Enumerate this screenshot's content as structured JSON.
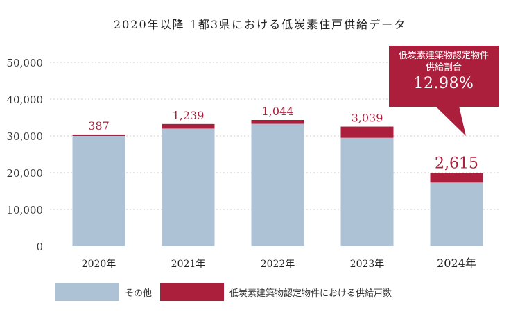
{
  "colors": {
    "other": "#aec2d6",
    "low_carbon": "#ab1f3c",
    "grid": "#cfcfcf",
    "label": "#ab1f3c"
  },
  "chart_data": {
    "type": "bar",
    "stacked": true,
    "title": "2020年以降 1都3県における低炭素住戸供給データ",
    "categories": [
      "2020年",
      "2021年",
      "2022年",
      "2023年",
      "2024年"
    ],
    "series": [
      {
        "name": "その他",
        "values": [
          30000,
          32000,
          33300,
          29500,
          17300
        ]
      },
      {
        "name": "低炭素建築物認定物件における供給戸数",
        "values": [
          387,
          1239,
          1044,
          3039,
          2615
        ]
      }
    ],
    "ylim": [
      0,
      50000
    ],
    "yticks": [
      "0",
      "10,000",
      "20,000",
      "30,000",
      "40,000",
      "50,000"
    ],
    "data_labels": [
      "387",
      "1,239",
      "1,044",
      "3,039",
      "2,615"
    ],
    "grid": true,
    "legend_position": "bottom-left"
  },
  "callout": {
    "line1": "低炭素建築物認定物件",
    "line2": "供給割合",
    "value": "12.98%"
  },
  "legend": {
    "other_label": "その他",
    "low_carbon_label": "低炭素建築物認定物件における供給戸数"
  }
}
